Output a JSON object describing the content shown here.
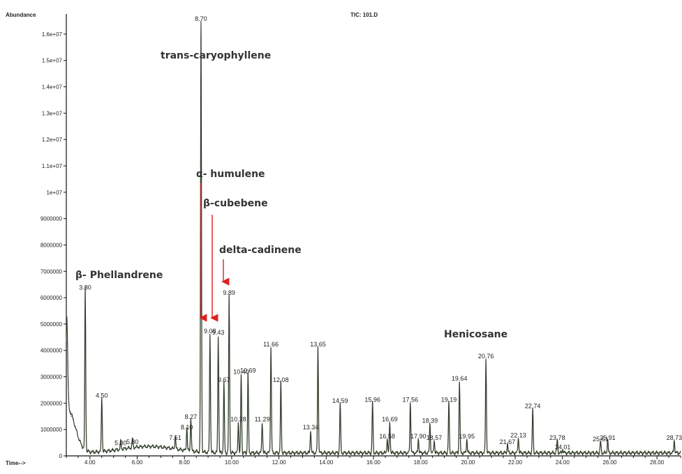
{
  "chart_data": {
    "type": "line",
    "ylabel": "Abundance",
    "xlabel": "Time-->",
    "title": "TIC: 101.D",
    "xlim": [
      3.0,
      29.0
    ],
    "ylim": [
      0,
      16500000
    ],
    "x_ticks": [
      "4.00",
      "6.00",
      "8.00",
      "10.00",
      "12.00",
      "14.00",
      "16.00",
      "18.00",
      "20.00",
      "22.00",
      "24.00",
      "26.00",
      "28.00"
    ],
    "y_ticks": [
      {
        "value": 16000000,
        "label": "1.6e+07"
      },
      {
        "value": 15000000,
        "label": "1.5e+07"
      },
      {
        "value": 14000000,
        "label": "1.4e+07"
      },
      {
        "value": 13000000,
        "label": "1.3e+07"
      },
      {
        "value": 12000000,
        "label": "1.2e+07"
      },
      {
        "value": 11000000,
        "label": "1.1e+07"
      },
      {
        "value": 10000000,
        "label": "1e+07"
      },
      {
        "value": 9000000,
        "label": "9000000"
      },
      {
        "value": 8000000,
        "label": "8000000"
      },
      {
        "value": 7000000,
        "label": "7000000"
      },
      {
        "value": 6000000,
        "label": "6000000"
      },
      {
        "value": 5000000,
        "label": "5000000"
      },
      {
        "value": 4000000,
        "label": "4000000"
      },
      {
        "value": 3000000,
        "label": "3000000"
      },
      {
        "value": 2000000,
        "label": "2000000"
      },
      {
        "value": 1000000,
        "label": "1000000"
      },
      {
        "value": 0,
        "label": "0"
      }
    ],
    "peaks": [
      {
        "rt": 3.8,
        "label": "3.80",
        "height": 6200000
      },
      {
        "rt": 4.5,
        "label": "4.50",
        "height": 2100000
      },
      {
        "rt": 5.3,
        "label": "5.30",
        "height": 300000
      },
      {
        "rt": 5.8,
        "label": "5.80",
        "height": 350000
      },
      {
        "rt": 7.61,
        "label": "7.61",
        "height": 500000
      },
      {
        "rt": 8.1,
        "label": "8.10",
        "height": 900000
      },
      {
        "rt": 8.27,
        "label": "8.27",
        "height": 1300000
      },
      {
        "rt": 8.7,
        "label": "8.70",
        "height": 16400000
      },
      {
        "rt": 9.08,
        "label": "9.08",
        "height": 4550000
      },
      {
        "rt": 9.43,
        "label": "9.43",
        "height": 4500000
      },
      {
        "rt": 9.67,
        "label": "9.67",
        "height": 2700000
      },
      {
        "rt": 9.89,
        "label": "9.89",
        "height": 6000000
      },
      {
        "rt": 10.28,
        "label": "10.28",
        "height": 1200000
      },
      {
        "rt": 10.4,
        "label": "10.40",
        "height": 3000000
      },
      {
        "rt": 10.69,
        "label": "10.69",
        "height": 3050000
      },
      {
        "rt": 11.29,
        "label": "11.29",
        "height": 1200000
      },
      {
        "rt": 11.66,
        "label": "11.66",
        "height": 4050000
      },
      {
        "rt": 12.08,
        "label": "12.08",
        "height": 2700000
      },
      {
        "rt": 13.34,
        "label": "13.34",
        "height": 900000
      },
      {
        "rt": 13.65,
        "label": "13.65",
        "height": 4050000
      },
      {
        "rt": 14.59,
        "label": "14.59",
        "height": 1900000
      },
      {
        "rt": 15.96,
        "label": "15.96",
        "height": 1950000
      },
      {
        "rt": 16.58,
        "label": "16.58",
        "height": 550000
      },
      {
        "rt": 16.69,
        "label": "16.69",
        "height": 1200000
      },
      {
        "rt": 17.56,
        "label": "17.56",
        "height": 1950000
      },
      {
        "rt": 17.9,
        "label": "17.90",
        "height": 550000
      },
      {
        "rt": 18.39,
        "label": "18.39",
        "height": 1150000
      },
      {
        "rt": 18.57,
        "label": "18.57",
        "height": 500000
      },
      {
        "rt": 19.19,
        "label": "19.19",
        "height": 1950000
      },
      {
        "rt": 19.64,
        "label": "19.64",
        "height": 2750000
      },
      {
        "rt": 19.95,
        "label": "19.95",
        "height": 550000
      },
      {
        "rt": 20.76,
        "label": "20.76",
        "height": 3600000
      },
      {
        "rt": 21.67,
        "label": "21.67",
        "height": 350000
      },
      {
        "rt": 22.13,
        "label": "22.13",
        "height": 600000
      },
      {
        "rt": 22.74,
        "label": "22.74",
        "height": 1700000
      },
      {
        "rt": 23.78,
        "label": "23.78",
        "height": 500000
      },
      {
        "rt": 24.01,
        "label": "24.01",
        "height": 150000
      },
      {
        "rt": 25.61,
        "label": "25.61",
        "height": 450000
      },
      {
        "rt": 25.91,
        "label": "25.91",
        "height": 500000
      },
      {
        "rt": 28.73,
        "label": "28.73",
        "height": 500000
      }
    ],
    "annotations": [
      {
        "text": "trans-caryophyllene",
        "rt": 8.7
      },
      {
        "text": "α- humulene",
        "rt": 9.08
      },
      {
        "text": "β-cubebene",
        "rt": 9.43
      },
      {
        "text": "delta-cadinene",
        "rt": 9.89
      },
      {
        "text": "β- Phellandrene",
        "rt": 3.8
      },
      {
        "text": "Henicosane",
        "rt": 20.76
      }
    ],
    "colors": {
      "trace": "#2f3a2a",
      "trace2": "#7a8a6a",
      "arrow": "#e02020",
      "axis": "#111111"
    },
    "grid": false
  }
}
